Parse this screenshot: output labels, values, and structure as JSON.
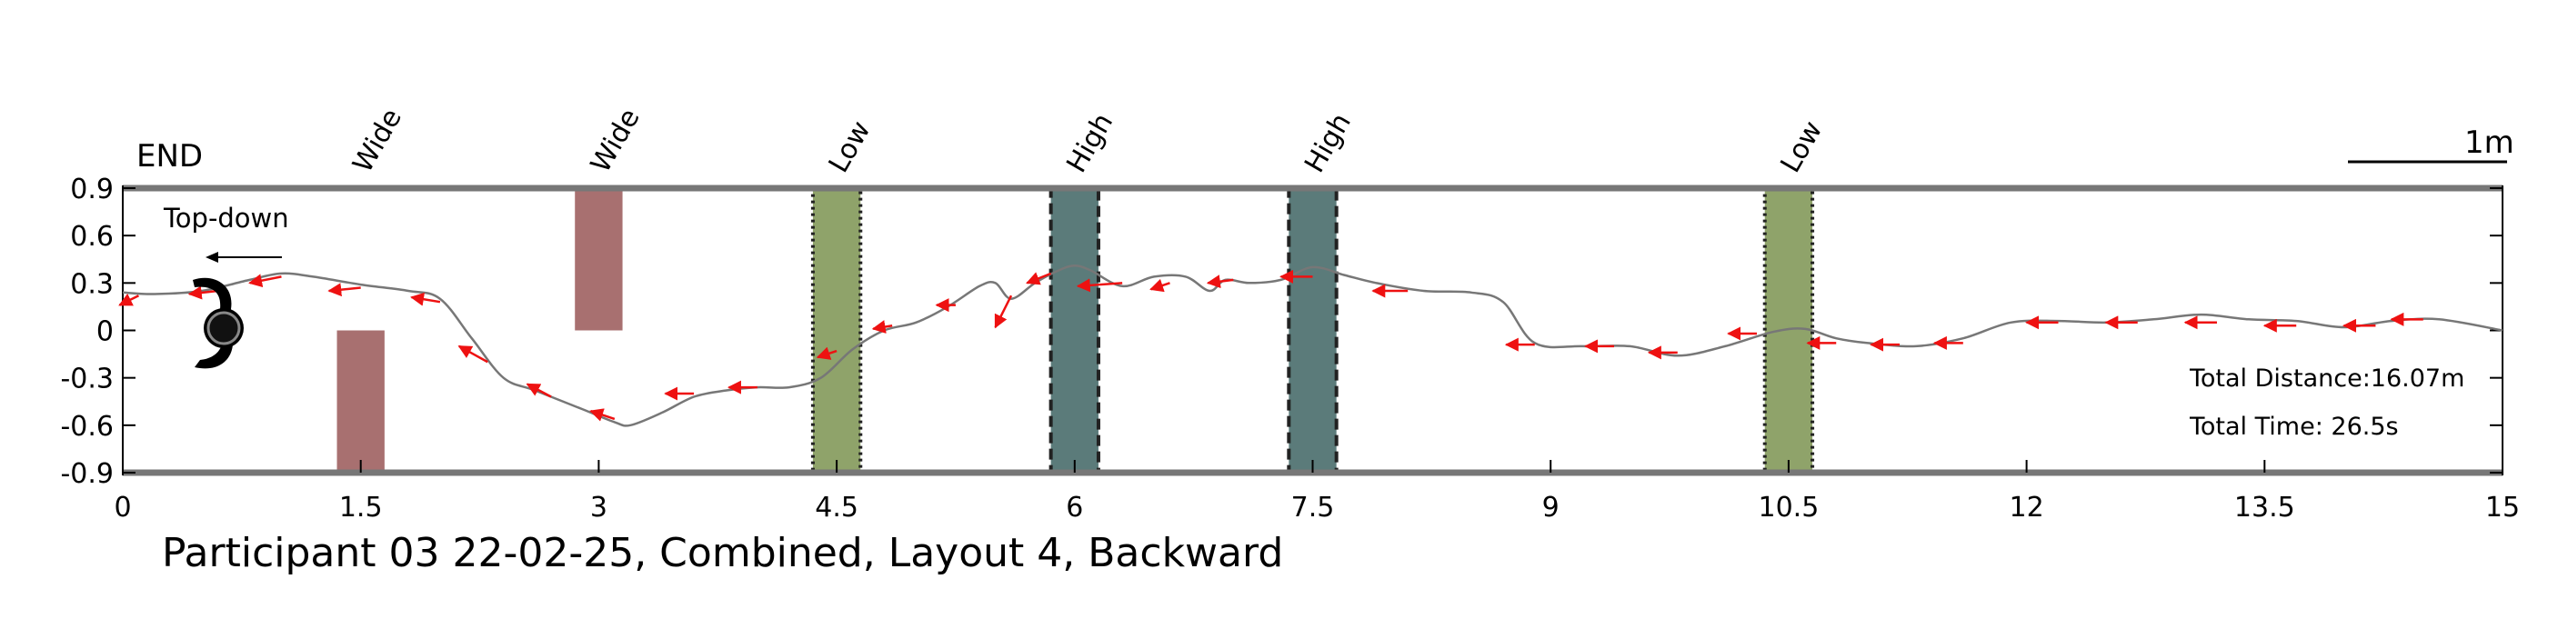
{
  "chart_data": {
    "type": "line",
    "title": "Participant 03 22-02-25, Combined, Layout 4, Backward",
    "xlabel": "",
    "ylabel": "",
    "xlim": [
      0,
      15
    ],
    "ylim": [
      -0.9,
      0.9
    ],
    "xticks": [
      "0",
      "1.5",
      "3",
      "4.5",
      "6",
      "7.5",
      "9",
      "10.5",
      "12",
      "13.5",
      "15"
    ],
    "xtick_values": [
      0,
      1.5,
      3,
      4.5,
      6,
      7.5,
      9,
      10.5,
      12,
      13.5,
      15
    ],
    "yticks": [
      "0.9",
      "0.6",
      "0.3",
      "0",
      "-0.3",
      "-0.6",
      "-0.9"
    ],
    "ytick_values": [
      0.9,
      0.6,
      0.3,
      0,
      -0.3,
      -0.6,
      -0.9
    ],
    "grid": false,
    "end_label": "END",
    "view_label": "Top-down",
    "scale_bar_label": "1m",
    "total_distance": "Total Distance:16.07m",
    "total_time": "Total Time: 26.5s",
    "obstacles": [
      {
        "label": "Wide",
        "type": "wide",
        "x_center": 1.5,
        "width": 0.3,
        "y_from": -0.9,
        "y_to": 0.0,
        "color": "#a87070"
      },
      {
        "label": "Wide",
        "type": "wide",
        "x_center": 3.0,
        "width": 0.3,
        "y_from": 0.0,
        "y_to": 0.9,
        "color": "#a87070"
      },
      {
        "label": "Low",
        "type": "low",
        "x_center": 4.5,
        "width": 0.3,
        "y_from": -0.9,
        "y_to": 0.9,
        "color": "#8fa36a"
      },
      {
        "label": "High",
        "type": "high",
        "x_center": 6.0,
        "width": 0.3,
        "y_from": -0.9,
        "y_to": 0.9,
        "color": "#5b7b7a"
      },
      {
        "label": "High",
        "type": "high",
        "x_center": 7.5,
        "width": 0.3,
        "y_from": -0.9,
        "y_to": 0.9,
        "color": "#5b7b7a"
      },
      {
        "label": "Low",
        "type": "low",
        "x_center": 10.5,
        "width": 0.3,
        "y_from": -0.9,
        "y_to": 0.9,
        "color": "#8fa36a"
      }
    ],
    "path": {
      "x": [
        0.0,
        0.2,
        0.5,
        0.8,
        1.0,
        1.2,
        1.5,
        1.8,
        2.0,
        2.2,
        2.4,
        2.6,
        2.9,
        3.1,
        3.2,
        3.4,
        3.6,
        3.8,
        4.0,
        4.2,
        4.4,
        4.6,
        4.8,
        5.0,
        5.2,
        5.4,
        5.5,
        5.6,
        5.75,
        5.9,
        6.0,
        6.1,
        6.3,
        6.5,
        6.7,
        6.85,
        6.95,
        7.1,
        7.3,
        7.5,
        7.7,
        7.9,
        8.2,
        8.5,
        8.7,
        8.9,
        9.2,
        9.5,
        9.8,
        10.1,
        10.4,
        10.6,
        10.8,
        11.0,
        11.3,
        11.6,
        11.9,
        12.2,
        12.5,
        12.8,
        13.1,
        13.4,
        13.7,
        14.0,
        14.3,
        14.6,
        15.0
      ],
      "y": [
        0.24,
        0.23,
        0.25,
        0.32,
        0.36,
        0.34,
        0.29,
        0.25,
        0.2,
        -0.05,
        -0.3,
        -0.38,
        -0.5,
        -0.58,
        -0.6,
        -0.52,
        -0.42,
        -0.38,
        -0.36,
        -0.36,
        -0.3,
        -0.12,
        0.0,
        0.05,
        0.15,
        0.28,
        0.3,
        0.2,
        0.3,
        0.38,
        0.41,
        0.38,
        0.28,
        0.34,
        0.34,
        0.25,
        0.32,
        0.3,
        0.32,
        0.4,
        0.35,
        0.3,
        0.25,
        0.24,
        0.18,
        -0.08,
        -0.1,
        -0.1,
        -0.16,
        -0.1,
        -0.01,
        0.01,
        -0.05,
        -0.08,
        -0.1,
        -0.05,
        0.05,
        0.06,
        0.05,
        0.07,
        0.1,
        0.07,
        0.06,
        0.02,
        0.06,
        0.07,
        0.0
      ]
    },
    "orientation_arrows": [
      {
        "x": 0.1,
        "y": 0.22,
        "dx": -0.12,
        "dy": -0.06
      },
      {
        "x": 0.6,
        "y": 0.25,
        "dx": -0.18,
        "dy": -0.02
      },
      {
        "x": 1.0,
        "y": 0.34,
        "dx": -0.2,
        "dy": -0.04
      },
      {
        "x": 1.5,
        "y": 0.27,
        "dx": -0.2,
        "dy": -0.02
      },
      {
        "x": 2.0,
        "y": 0.18,
        "dx": -0.18,
        "dy": 0.03
      },
      {
        "x": 2.3,
        "y": -0.2,
        "dx": -0.18,
        "dy": 0.1
      },
      {
        "x": 2.7,
        "y": -0.42,
        "dx": -0.15,
        "dy": 0.08
      },
      {
        "x": 3.1,
        "y": -0.56,
        "dx": -0.15,
        "dy": 0.05
      },
      {
        "x": 3.6,
        "y": -0.4,
        "dx": -0.18,
        "dy": 0.0
      },
      {
        "x": 4.0,
        "y": -0.36,
        "dx": -0.18,
        "dy": 0.0
      },
      {
        "x": 4.5,
        "y": -0.13,
        "dx": -0.12,
        "dy": -0.04
      },
      {
        "x": 4.85,
        "y": 0.03,
        "dx": -0.12,
        "dy": -0.02
      },
      {
        "x": 5.25,
        "y": 0.16,
        "dx": -0.12,
        "dy": 0.0
      },
      {
        "x": 5.6,
        "y": 0.22,
        "dx": -0.1,
        "dy": -0.2
      },
      {
        "x": 5.85,
        "y": 0.36,
        "dx": -0.15,
        "dy": -0.06
      },
      {
        "x": 6.3,
        "y": 0.3,
        "dx": -0.28,
        "dy": -0.02
      },
      {
        "x": 6.6,
        "y": 0.3,
        "dx": -0.12,
        "dy": -0.04
      },
      {
        "x": 7.0,
        "y": 0.32,
        "dx": -0.16,
        "dy": -0.02
      },
      {
        "x": 7.5,
        "y": 0.34,
        "dx": -0.2,
        "dy": 0.0
      },
      {
        "x": 8.1,
        "y": 0.25,
        "dx": -0.22,
        "dy": 0.0
      },
      {
        "x": 8.9,
        "y": -0.09,
        "dx": -0.18,
        "dy": 0.0
      },
      {
        "x": 9.4,
        "y": -0.1,
        "dx": -0.18,
        "dy": 0.0
      },
      {
        "x": 9.8,
        "y": -0.14,
        "dx": -0.18,
        "dy": 0.0
      },
      {
        "x": 10.3,
        "y": -0.02,
        "dx": -0.18,
        "dy": 0.0
      },
      {
        "x": 10.8,
        "y": -0.08,
        "dx": -0.18,
        "dy": 0.0
      },
      {
        "x": 11.2,
        "y": -0.09,
        "dx": -0.18,
        "dy": 0.0
      },
      {
        "x": 11.6,
        "y": -0.08,
        "dx": -0.18,
        "dy": 0.0
      },
      {
        "x": 12.2,
        "y": 0.05,
        "dx": -0.2,
        "dy": 0.0
      },
      {
        "x": 12.7,
        "y": 0.05,
        "dx": -0.2,
        "dy": 0.0
      },
      {
        "x": 13.2,
        "y": 0.05,
        "dx": -0.2,
        "dy": 0.0
      },
      {
        "x": 13.7,
        "y": 0.03,
        "dx": -0.2,
        "dy": 0.0
      },
      {
        "x": 14.2,
        "y": 0.03,
        "dx": -0.2,
        "dy": 0.0
      },
      {
        "x": 14.5,
        "y": 0.07,
        "dx": -0.2,
        "dy": 0.0
      }
    ],
    "colors": {
      "path": "#777777",
      "arrows": "#ee1111",
      "axis": "#777777",
      "obstacle_border": "#222222"
    }
  }
}
